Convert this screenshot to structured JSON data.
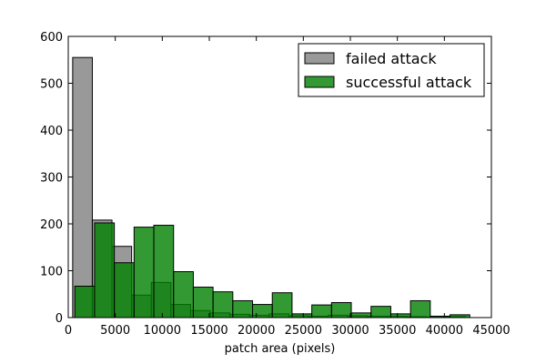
{
  "chart_data": {
    "type": "bar",
    "title": "",
    "xlabel": "patch area (pixels)",
    "ylabel": "",
    "xlim": [
      0,
      45000
    ],
    "ylim": [
      0,
      600
    ],
    "xticks": [
      0,
      5000,
      10000,
      15000,
      20000,
      25000,
      30000,
      35000,
      40000,
      45000
    ],
    "yticks": [
      0,
      100,
      200,
      300,
      400,
      500,
      600
    ],
    "grid": false,
    "legend_position": "top-right",
    "series": [
      {
        "name": "failed attack",
        "color": "#808080",
        "bins": [
          {
            "x0": 470,
            "x1": 2560,
            "value": 555
          },
          {
            "x0": 2560,
            "x1": 4650,
            "value": 208
          },
          {
            "x0": 4650,
            "x1": 6740,
            "value": 152
          },
          {
            "x0": 6740,
            "x1": 8830,
            "value": 48
          },
          {
            "x0": 8830,
            "x1": 10920,
            "value": 75
          },
          {
            "x0": 10920,
            "x1": 13010,
            "value": 28
          },
          {
            "x0": 13010,
            "x1": 15100,
            "value": 15
          },
          {
            "x0": 15100,
            "x1": 17190,
            "value": 10
          },
          {
            "x0": 17190,
            "x1": 19280,
            "value": 7
          },
          {
            "x0": 19280,
            "x1": 21370,
            "value": 5
          },
          {
            "x0": 21370,
            "x1": 23460,
            "value": 8
          },
          {
            "x0": 23460,
            "x1": 25550,
            "value": 4
          },
          {
            "x0": 25550,
            "x1": 27640,
            "value": 3
          },
          {
            "x0": 27640,
            "x1": 29730,
            "value": 5
          },
          {
            "x0": 29730,
            "x1": 31820,
            "value": 4
          },
          {
            "x0": 31820,
            "x1": 33910,
            "value": 3
          },
          {
            "x0": 33910,
            "x1": 36000,
            "value": 3
          },
          {
            "x0": 36000,
            "x1": 38090,
            "value": 2
          },
          {
            "x0": 38090,
            "x1": 40180,
            "value": 1
          },
          {
            "x0": 40180,
            "x1": 42270,
            "value": 2
          }
        ]
      },
      {
        "name": "successful attack",
        "color": "#007f00",
        "bins": [
          {
            "x0": 700,
            "x1": 2800,
            "value": 67
          },
          {
            "x0": 2800,
            "x1": 4900,
            "value": 202
          },
          {
            "x0": 4900,
            "x1": 7000,
            "value": 117
          },
          {
            "x0": 7000,
            "x1": 9100,
            "value": 193
          },
          {
            "x0": 9100,
            "x1": 11200,
            "value": 197
          },
          {
            "x0": 11200,
            "x1": 13300,
            "value": 98
          },
          {
            "x0": 13300,
            "x1": 15400,
            "value": 65
          },
          {
            "x0": 15400,
            "x1": 17500,
            "value": 55
          },
          {
            "x0": 17500,
            "x1": 19600,
            "value": 36
          },
          {
            "x0": 19600,
            "x1": 21700,
            "value": 28
          },
          {
            "x0": 21700,
            "x1": 23800,
            "value": 53
          },
          {
            "x0": 23800,
            "x1": 25900,
            "value": 8
          },
          {
            "x0": 25900,
            "x1": 28000,
            "value": 27
          },
          {
            "x0": 28000,
            "x1": 30100,
            "value": 32
          },
          {
            "x0": 30100,
            "x1": 32200,
            "value": 10
          },
          {
            "x0": 32200,
            "x1": 34300,
            "value": 24
          },
          {
            "x0": 34300,
            "x1": 36400,
            "value": 8
          },
          {
            "x0": 36400,
            "x1": 38500,
            "value": 36
          },
          {
            "x0": 38500,
            "x1": 40600,
            "value": 3
          },
          {
            "x0": 40600,
            "x1": 42700,
            "value": 6
          }
        ]
      }
    ]
  }
}
